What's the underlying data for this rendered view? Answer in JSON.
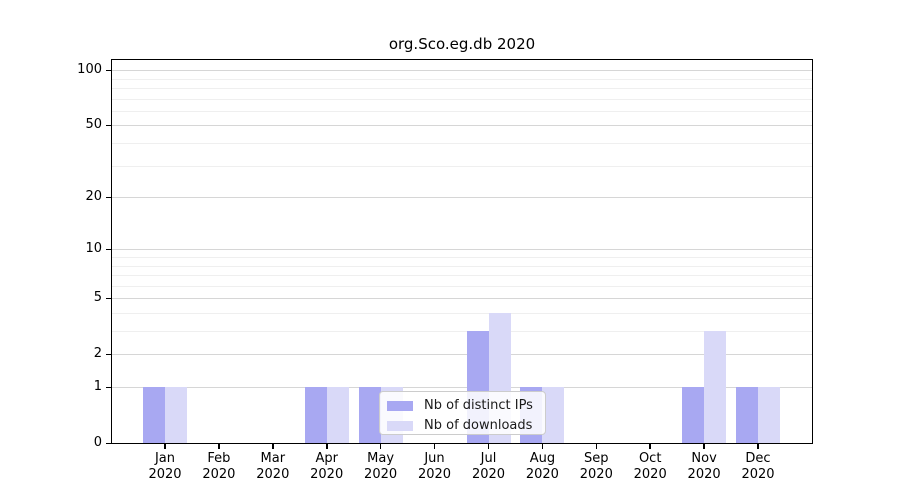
{
  "chart_data": {
    "type": "bar",
    "title": "org.Sco.eg.db 2020",
    "months": [
      "Jan",
      "Feb",
      "Mar",
      "Apr",
      "May",
      "Jun",
      "Jul",
      "Aug",
      "Sep",
      "Oct",
      "Nov",
      "Dec"
    ],
    "year": "2020",
    "series": [
      {
        "name": "Nb of distinct IPs",
        "color": "#a8a8f2",
        "values": [
          1,
          0,
          0,
          1,
          1,
          0,
          3,
          1,
          0,
          0,
          1,
          1
        ]
      },
      {
        "name": "Nb of downloads",
        "color": "#d9d9f8",
        "values": [
          1,
          0,
          0,
          1,
          1,
          0,
          4,
          1,
          0,
          0,
          3,
          1
        ]
      }
    ],
    "yscale": "log1p",
    "ylim": [
      0,
      113.5
    ],
    "yticks": [
      0,
      1,
      2,
      5,
      10,
      20,
      50,
      100
    ],
    "minor_gridlines": [
      3,
      4,
      6,
      7,
      8,
      9,
      30,
      40,
      60,
      70,
      80,
      90
    ],
    "grid": true,
    "legend_position": "lower center"
  }
}
